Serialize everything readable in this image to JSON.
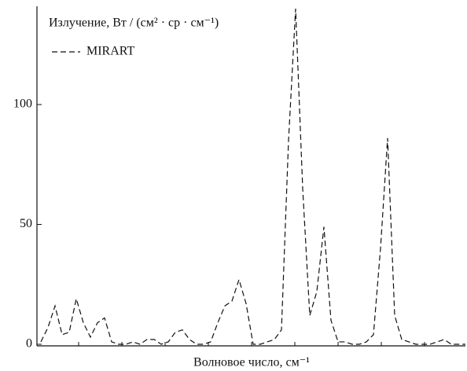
{
  "chart_data": {
    "type": "line",
    "title": "Излучение, Вт / (см² · ср · см⁻¹)",
    "x_label": "Волновое число, см⁻¹",
    "categories": [
      null,
      null,
      null,
      null,
      null,
      null,
      null,
      null,
      null,
      null,
      null,
      null,
      null,
      null,
      null,
      null,
      null,
      null,
      null,
      null,
      null,
      null,
      null,
      null,
      null,
      null,
      null,
      null,
      null,
      null,
      null,
      null,
      null,
      null,
      null,
      null,
      null,
      null,
      null,
      null,
      null,
      null,
      null,
      null,
      null,
      null,
      null,
      null,
      null,
      null,
      null,
      null,
      null,
      null,
      null,
      null,
      null,
      null,
      null,
      null,
      null
    ],
    "series": [
      {
        "name": "MIRART",
        "color": "#111111",
        "values": [
          1,
          7,
          16,
          4,
          5,
          19,
          9,
          3,
          9,
          11,
          1,
          0,
          0,
          1,
          0,
          2,
          2,
          0,
          1,
          5,
          6,
          2,
          0,
          0,
          1,
          9,
          16,
          18,
          27,
          17,
          0,
          0,
          1,
          2,
          6,
          85,
          140,
          65,
          12,
          22,
          49,
          10,
          1,
          1,
          0,
          0,
          1,
          4,
          40,
          86,
          12,
          2,
          1,
          0,
          0,
          0,
          1,
          2,
          0,
          0,
          0
        ]
      }
    ],
    "ylim": [
      0,
      140
    ],
    "yticks": [
      0,
      50,
      100
    ],
    "grid": false,
    "legend": "upper left"
  }
}
